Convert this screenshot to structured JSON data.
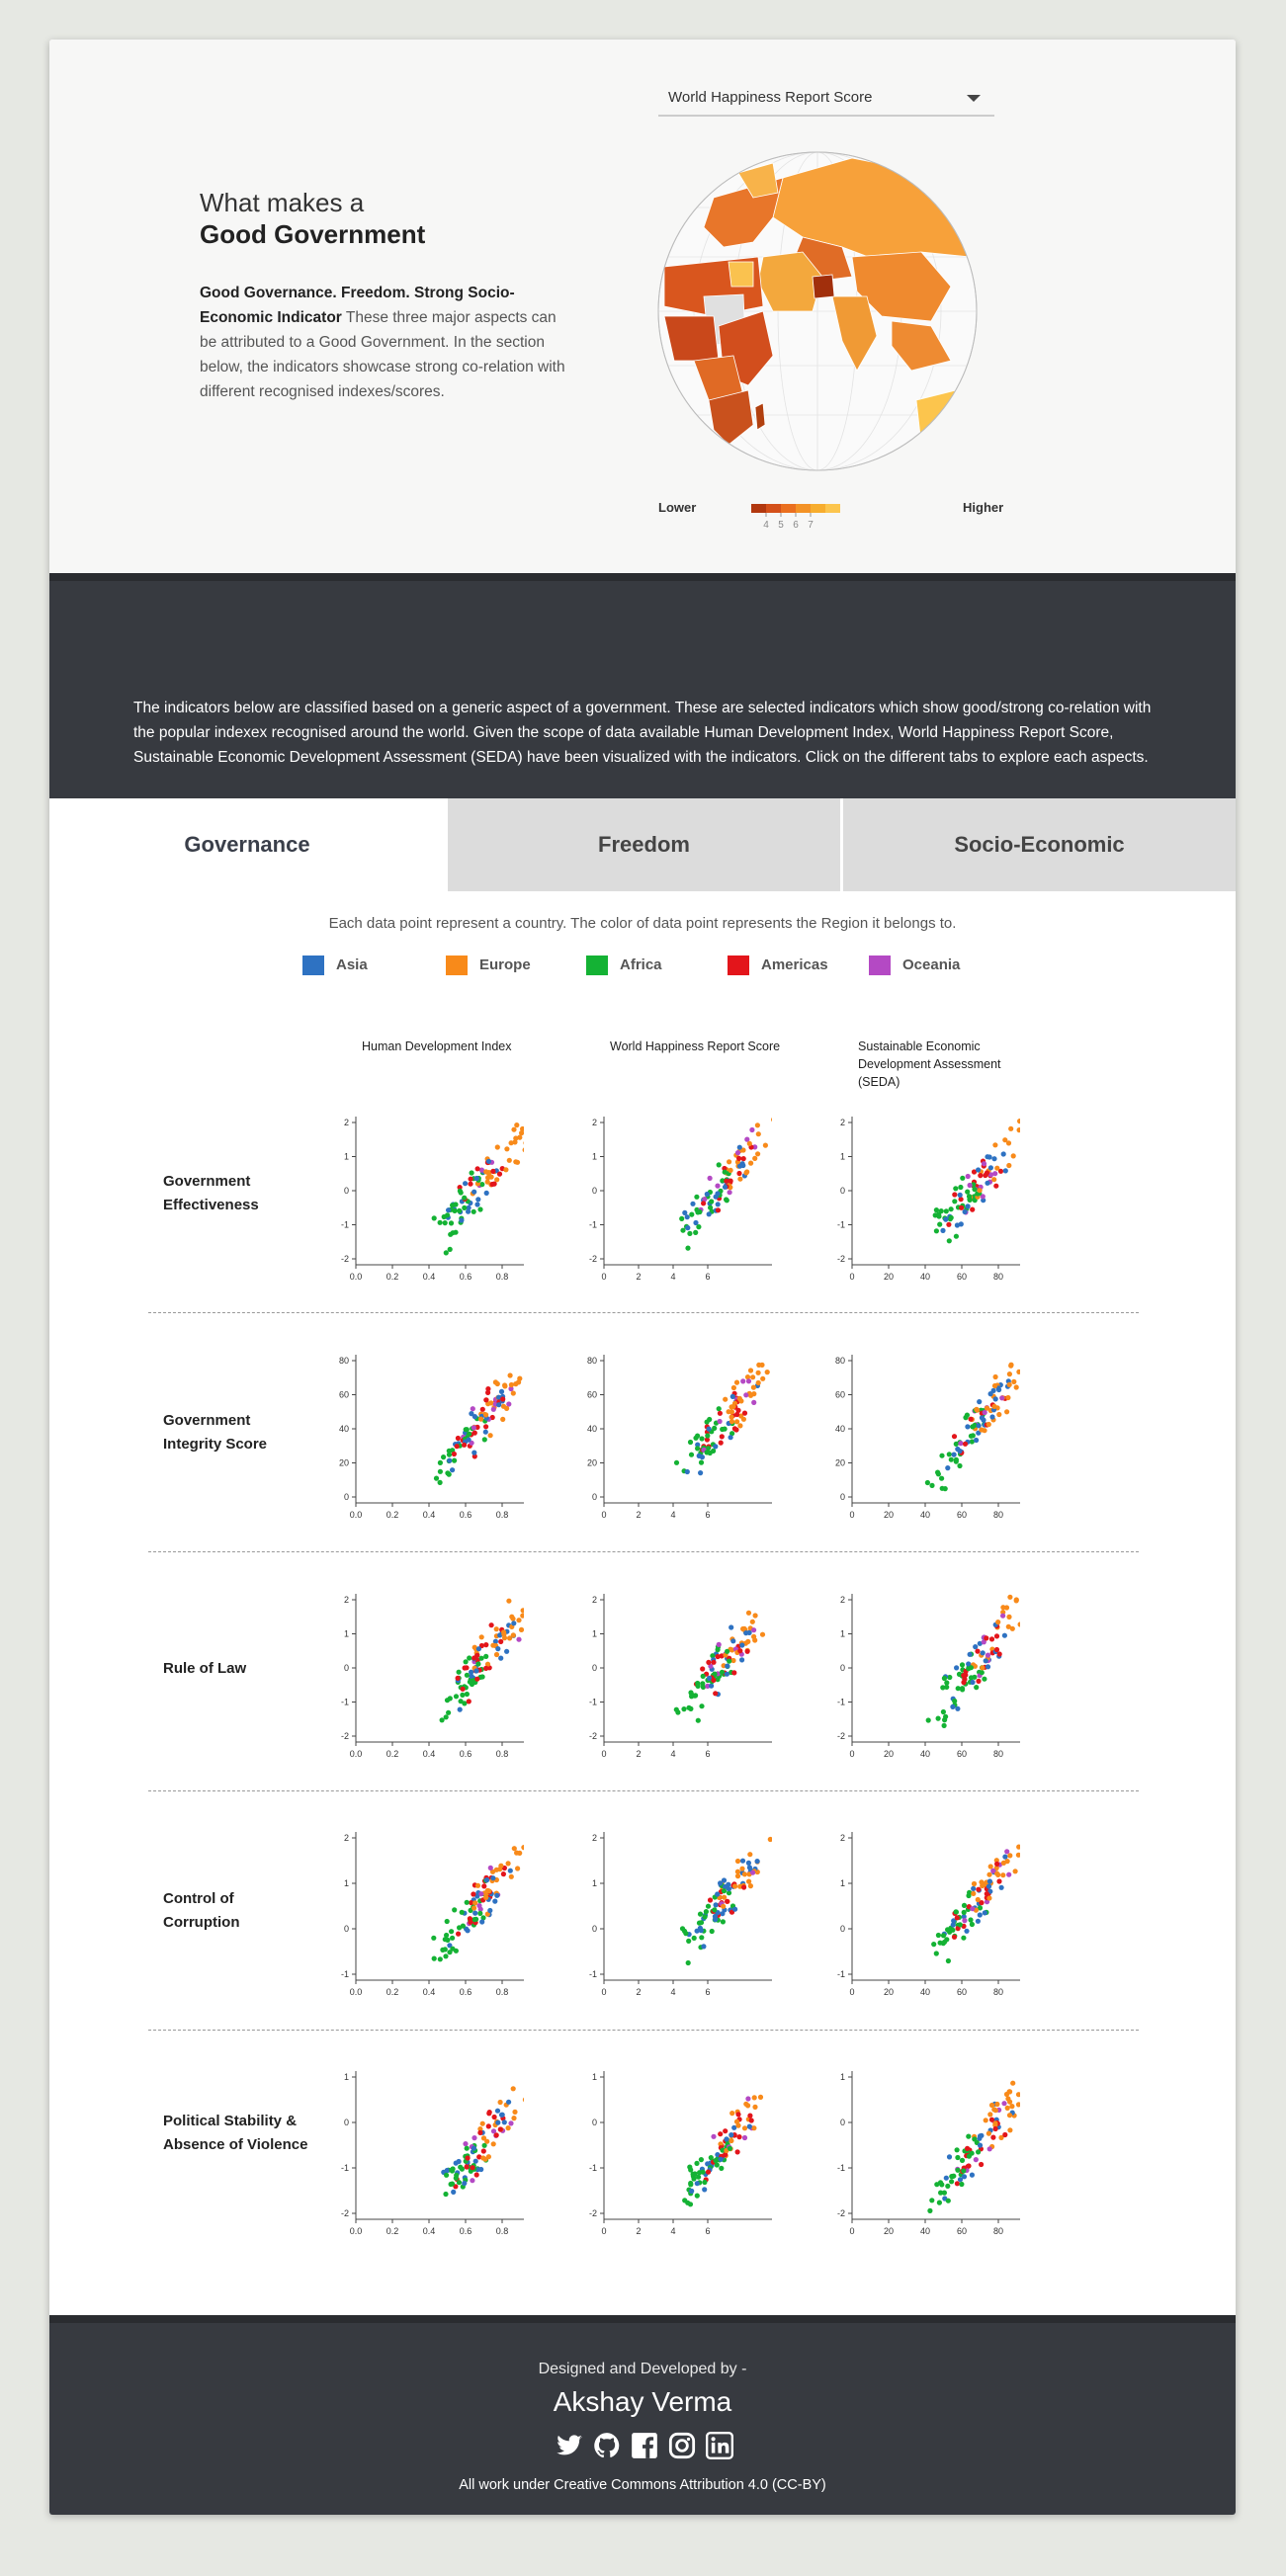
{
  "hero": {
    "title_light": "What makes a",
    "title_bold": "Good Government",
    "desc_bold": "Good Governance. Freedom. Strong Socio-Economic Indicator",
    "desc_rest": " These three major aspects can be attributed to a Good Government. In the section below, the indicators showcase strong co-relation with different recognised indexes/scores.",
    "select_value": "World Happiness Report Score",
    "legend_lower": "Lower",
    "legend_higher": "Higher",
    "legend_ticks": [
      "4",
      "5",
      "6",
      "7"
    ],
    "legend_colors": [
      "#b2380f",
      "#d4501a",
      "#ea6f1f",
      "#f39226",
      "#f7ad2e",
      "#fcc54d"
    ]
  },
  "intro": {
    "text": "The indicators below are classified based on a generic aspect of a government. These are selected indicators which show good/strong co-relation with the popular indexex recognised around the world. Given the scope of data available Human Development Index, World Happiness Report Score, Sustainable Economic Development Assessment (SEDA) have been visualized with the indicators. Click on the different tabs to explore each aspects."
  },
  "tabs": [
    {
      "label": "Governance",
      "active": true
    },
    {
      "label": "Freedom",
      "active": false
    },
    {
      "label": "Socio-Economic",
      "active": false
    }
  ],
  "caption": "Each data point represent a country. The color of data point represents the Region it belongs to.",
  "regions": [
    {
      "name": "Asia",
      "color": "#2e72c2"
    },
    {
      "name": "Europe",
      "color": "#f88a1a"
    },
    {
      "name": "Africa",
      "color": "#14b234"
    },
    {
      "name": "Americas",
      "color": "#e3151b"
    },
    {
      "name": "Oceania",
      "color": "#b449c4"
    }
  ],
  "columns": [
    {
      "title": "Human Development Index",
      "xticks": [
        "0.0",
        "0.2",
        "0.4",
        "0.6",
        "0.8"
      ]
    },
    {
      "title": "World Happiness Report Score",
      "xticks": [
        "0",
        "2",
        "4",
        "6"
      ]
    },
    {
      "title": "Sustainable Economic Development Assessment (SEDA)",
      "xticks": [
        "0",
        "20",
        "40",
        "60",
        "80"
      ]
    }
  ],
  "rows": [
    {
      "label": "Government Effectiveness",
      "yticks": [
        "2",
        "1",
        "0",
        "-1",
        "-2"
      ]
    },
    {
      "label": "Government Integrity Score",
      "yticks": [
        "80",
        "60",
        "40",
        "20",
        "0"
      ]
    },
    {
      "label": "Rule of Law",
      "yticks": [
        "2",
        "1",
        "0",
        "-1",
        "-2"
      ]
    },
    {
      "label": "Control of Corruption",
      "yticks": [
        "2",
        "1",
        "0",
        "-1"
      ]
    },
    {
      "label": "Political Stability & Absence of Violence",
      "yticks": [
        "1",
        "0",
        "-1",
        "-2"
      ]
    }
  ],
  "footer": {
    "line1": "Designed and Developed by -",
    "name": "Akshay Verma",
    "license": "All work under Creative Commons Attribution 4.0 (CC-BY)",
    "icons": [
      "twitter-icon",
      "github-icon",
      "facebook-icon",
      "instagram-icon",
      "linkedin-icon"
    ]
  }
}
